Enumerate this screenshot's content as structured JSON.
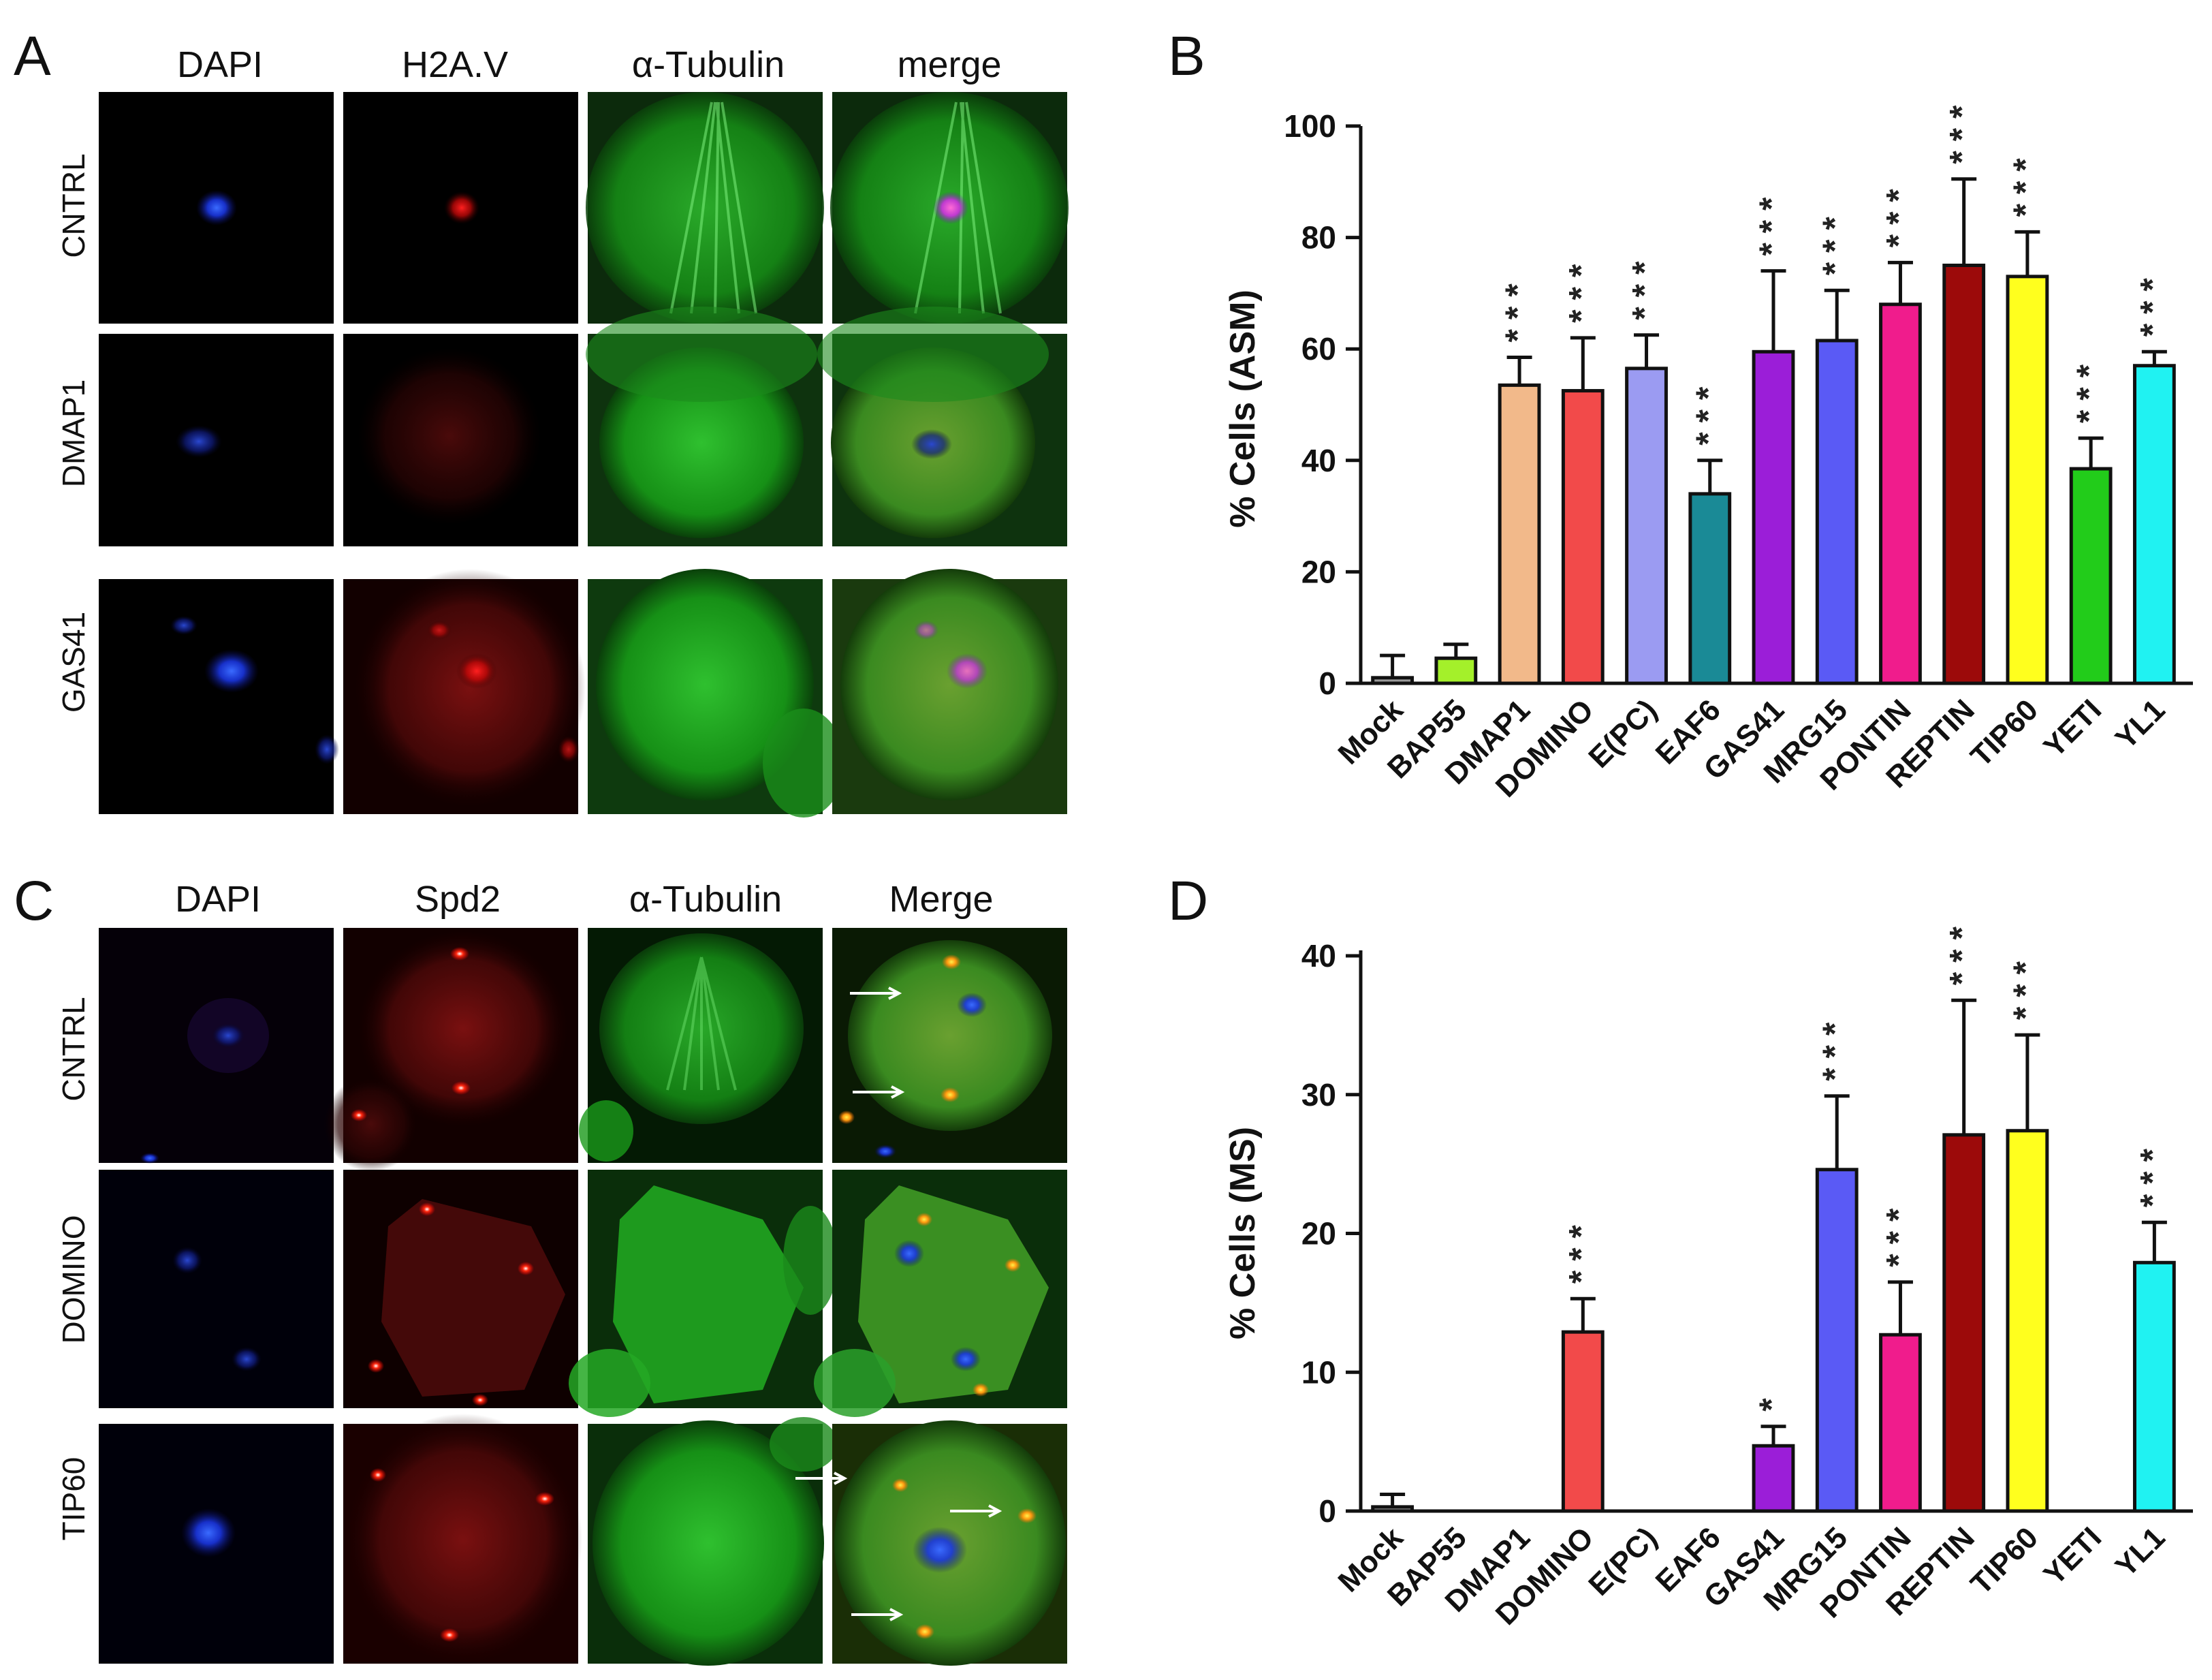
{
  "panels": {
    "A": {
      "letter": "A",
      "columns": [
        "DAPI",
        "H2A.V",
        "α-Tubulin",
        "merge"
      ],
      "rows": [
        "CNTRL",
        "DMAP1",
        "GAS41"
      ]
    },
    "B": {
      "letter": "B"
    },
    "C": {
      "letter": "C",
      "columns": [
        "DAPI",
        "Spd2",
        "α-Tubulin",
        "Merge"
      ],
      "rows": [
        "CNTRL",
        "DOMINO",
        "TIP60"
      ]
    },
    "D": {
      "letter": "D"
    }
  },
  "colors": {
    "Mock": "#9a9a9a",
    "BAP55": "#a4f02a",
    "DMAP1": "#f2b98a",
    "DOMINO": "#f24a4a",
    "E(PC)": "#9b9bf2",
    "EAF6": "#1a8a96",
    "GAS41": "#9b1ed8",
    "MRG15": "#5a5af5",
    "PONTIN": "#f01c8c",
    "REPTIN": "#9c0a0a",
    "TIP60": "#ffff1e",
    "YETI": "#22cc1a",
    "YL1": "#20f2f2"
  },
  "chart_data": [
    {
      "type": "bar",
      "panel": "B",
      "ylabel": "% Cells (ASM)",
      "ylim": [
        0,
        100
      ],
      "yticks": [
        0,
        20,
        40,
        60,
        80,
        100
      ],
      "categories": [
        "Mock",
        "BAP55",
        "DMAP1",
        "DOMINO",
        "E(PC)",
        "EAF6",
        "GAS41",
        "MRG15",
        "PONTIN",
        "REPTIN",
        "TIP60",
        "YETI",
        "YL1"
      ],
      "values": [
        1,
        4.5,
        53.5,
        52.5,
        56.5,
        34,
        59.5,
        61.5,
        68,
        75,
        73,
        38.5,
        57
      ],
      "errors": [
        4,
        2.5,
        5,
        9.5,
        6,
        6,
        14.5,
        9,
        7.5,
        15.5,
        8,
        5.5,
        2.5
      ],
      "significance": [
        "",
        "",
        "***",
        "***",
        "***",
        "***",
        "***",
        "***",
        "***",
        "***",
        "***",
        "***",
        "***"
      ]
    },
    {
      "type": "bar",
      "panel": "D",
      "ylabel": "% Cells (MS)",
      "ylim": [
        0,
        40
      ],
      "yticks": [
        0,
        10,
        20,
        30,
        40
      ],
      "categories": [
        "Mock",
        "BAP55",
        "DMAP1",
        "DOMINO",
        "E(PC)",
        "EAF6",
        "GAS41",
        "MRG15",
        "PONTIN",
        "REPTIN",
        "TIP60",
        "YETI",
        "YL1"
      ],
      "values": [
        0.3,
        0,
        0,
        12.9,
        0,
        0,
        4.7,
        24.6,
        12.7,
        27.1,
        27.4,
        0,
        17.9
      ],
      "errors": [
        0.9,
        0,
        0,
        2.4,
        0,
        0,
        1.4,
        5.3,
        3.8,
        9.7,
        6.9,
        0,
        2.9
      ],
      "significance": [
        "",
        "",
        "",
        "***",
        "",
        "",
        "*",
        "***",
        "***",
        "***",
        "***",
        "",
        "***"
      ]
    }
  ]
}
